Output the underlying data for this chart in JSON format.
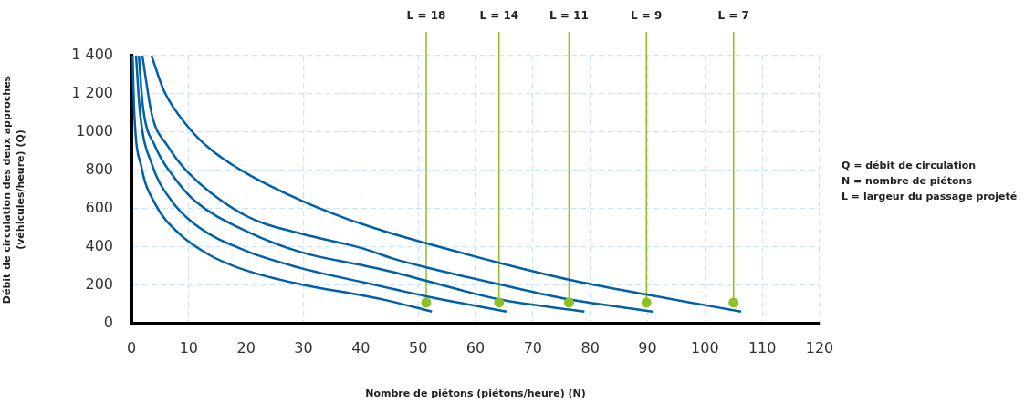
{
  "chart_data": {
    "type": "line",
    "xlabel": "Nombre de piétons (piétons/heure) (N)",
    "ylabel": "Débit de circulation des deux approches\n(véhicules/heure) (Q)",
    "xlim": [
      0,
      120
    ],
    "xticks": [
      0,
      10,
      20,
      30,
      40,
      50,
      60,
      70,
      80,
      90,
      100,
      110,
      120
    ],
    "ylim": [
      0,
      1400
    ],
    "yticks": [
      0,
      200,
      400,
      600,
      800,
      1000,
      {
        "value": 1200,
        "label": "1 200"
      },
      {
        "value": 1400,
        "label": "1 400"
      }
    ],
    "grid": true,
    "legend": false,
    "marker": "none",
    "line_style": "solid",
    "series": [
      {
        "color": "#0060a8",
        "x": [
          0.2,
          0.5,
          1.75,
          4.1,
          8.4,
          13.7,
          20,
          29.6,
          40.7,
          45.5,
          52.4
        ],
        "values": [
          1400,
          1100,
          818,
          628,
          468,
          357,
          278,
          205,
          145,
          115,
          63
        ]
      },
      {
        "color": "#0060a8",
        "x": [
          0.8,
          1.5,
          3.6,
          6.8,
          11,
          20,
          29.6,
          40.7,
          45.5,
          51.4,
          65.4
        ],
        "values": [
          1400,
          1100,
          830,
          650,
          520,
          380,
          290,
          214,
          182,
          143,
          63
        ]
      },
      {
        "color": "#0060a8",
        "x": [
          1.3,
          2,
          4.1,
          7.3,
          11,
          20,
          29.6,
          40.7,
          45.5,
          51.4,
          64.1,
          79
        ],
        "values": [
          1400,
          1135,
          929,
          770,
          643,
          484,
          373,
          302,
          270,
          224,
          127,
          63
        ]
      },
      {
        "color": "#0060a8",
        "x": [
          1.9,
          3.6,
          6.3,
          10,
          20,
          29.6,
          37.5,
          40.7,
          45.5,
          51.4,
          64.1,
          76.3,
          90.9
        ],
        "values": [
          1400,
          1087,
          929,
          786,
          563,
          470,
          415,
          390,
          341,
          294,
          206,
          127,
          63
        ]
      },
      {
        "color": "#0060a8",
        "x": [
          3.5,
          5.7,
          10,
          13.7,
          20,
          29.6,
          37.5,
          40.7,
          45.5,
          51.4,
          64.1,
          76.3,
          89.8,
          106.3
        ],
        "values": [
          1400,
          1214,
          1024,
          913,
          786,
          643,
          548,
          516,
          470,
          420,
          318,
          230,
          152,
          63
        ]
      },
      {
        "type": "scatter",
        "marker": "circle",
        "color": "#8dc021",
        "x": [
          51.4,
          64.1,
          76.3,
          89.8,
          105
        ],
        "values": [
          110,
          110,
          110,
          110,
          110
        ]
      }
    ],
    "ref_lines": [
      {
        "axis": "x",
        "value": 51.4,
        "color": "#8dc021"
      },
      {
        "axis": "x",
        "value": 64.1,
        "color": "#8dc021"
      },
      {
        "axis": "x",
        "value": 76.3,
        "color": "#8dc021"
      },
      {
        "axis": "x",
        "value": 89.8,
        "color": "#8dc021"
      },
      {
        "axis": "x",
        "value": 105,
        "color": "#8dc021"
      }
    ],
    "annotations": [
      "L = 18",
      "L = 14",
      "L = 11",
      "L = 9",
      "L = 7",
      "Q = débit de circulation",
      "N = nombre de piétons",
      "L = largeur du passage projeté"
    ]
  }
}
